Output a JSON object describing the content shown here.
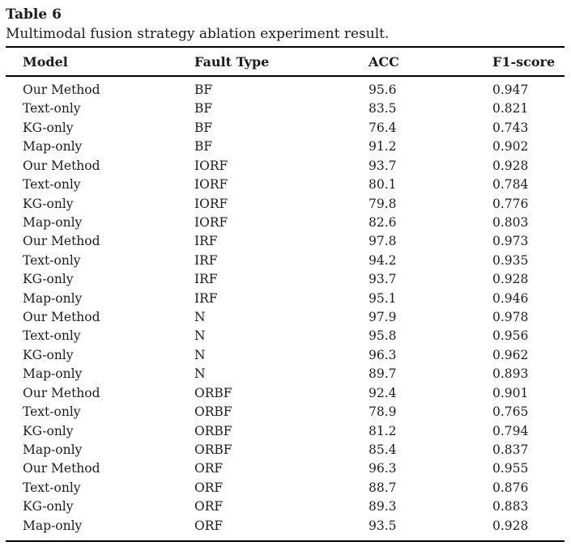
{
  "page": {
    "title": "Table 6",
    "caption": "Multimodal fusion strategy ablation experiment result."
  },
  "table": {
    "columns": [
      "Model",
      "Fault Type",
      "ACC",
      "F1-score"
    ],
    "rows": [
      {
        "model": "Our Method",
        "fault_type": "BF",
        "acc": "95.6",
        "f1": "0.947"
      },
      {
        "model": "Text-only",
        "fault_type": "BF",
        "acc": "83.5",
        "f1": "0.821"
      },
      {
        "model": "KG-only",
        "fault_type": "BF",
        "acc": "76.4",
        "f1": "0.743"
      },
      {
        "model": "Map-only",
        "fault_type": "BF",
        "acc": "91.2",
        "f1": "0.902"
      },
      {
        "model": "Our Method",
        "fault_type": "IORF",
        "acc": "93.7",
        "f1": "0.928"
      },
      {
        "model": "Text-only",
        "fault_type": "IORF",
        "acc": "80.1",
        "f1": "0.784"
      },
      {
        "model": "KG-only",
        "fault_type": "IORF",
        "acc": "79.8",
        "f1": "0.776"
      },
      {
        "model": "Map-only",
        "fault_type": "IORF",
        "acc": "82.6",
        "f1": "0.803"
      },
      {
        "model": "Our Method",
        "fault_type": "IRF",
        "acc": "97.8",
        "f1": "0.973"
      },
      {
        "model": "Text-only",
        "fault_type": "IRF",
        "acc": "94.2",
        "f1": "0.935"
      },
      {
        "model": "KG-only",
        "fault_type": "IRF",
        "acc": "93.7",
        "f1": "0.928"
      },
      {
        "model": "Map-only",
        "fault_type": "IRF",
        "acc": "95.1",
        "f1": "0.946"
      },
      {
        "model": "Our Method",
        "fault_type": "N",
        "acc": "97.9",
        "f1": "0.978"
      },
      {
        "model": "Text-only",
        "fault_type": "N",
        "acc": "95.8",
        "f1": "0.956"
      },
      {
        "model": "KG-only",
        "fault_type": "N",
        "acc": "96.3",
        "f1": "0.962"
      },
      {
        "model": "Map-only",
        "fault_type": "N",
        "acc": "89.7",
        "f1": "0.893"
      },
      {
        "model": "Our Method",
        "fault_type": "ORBF",
        "acc": "92.4",
        "f1": "0.901"
      },
      {
        "model": "Text-only",
        "fault_type": "ORBF",
        "acc": "78.9",
        "f1": "0.765"
      },
      {
        "model": "KG-only",
        "fault_type": "ORBF",
        "acc": "81.2",
        "f1": "0.794"
      },
      {
        "model": "Map-only",
        "fault_type": "ORBF",
        "acc": "85.4",
        "f1": "0.837"
      },
      {
        "model": "Our Method",
        "fault_type": "ORF",
        "acc": "96.3",
        "f1": "0.955"
      },
      {
        "model": "Text-only",
        "fault_type": "ORF",
        "acc": "88.7",
        "f1": "0.876"
      },
      {
        "model": "KG-only",
        "fault_type": "ORF",
        "acc": "89.3",
        "f1": "0.883"
      },
      {
        "model": "Map-only",
        "fault_type": "ORF",
        "acc": "93.5",
        "f1": "0.928"
      }
    ]
  }
}
